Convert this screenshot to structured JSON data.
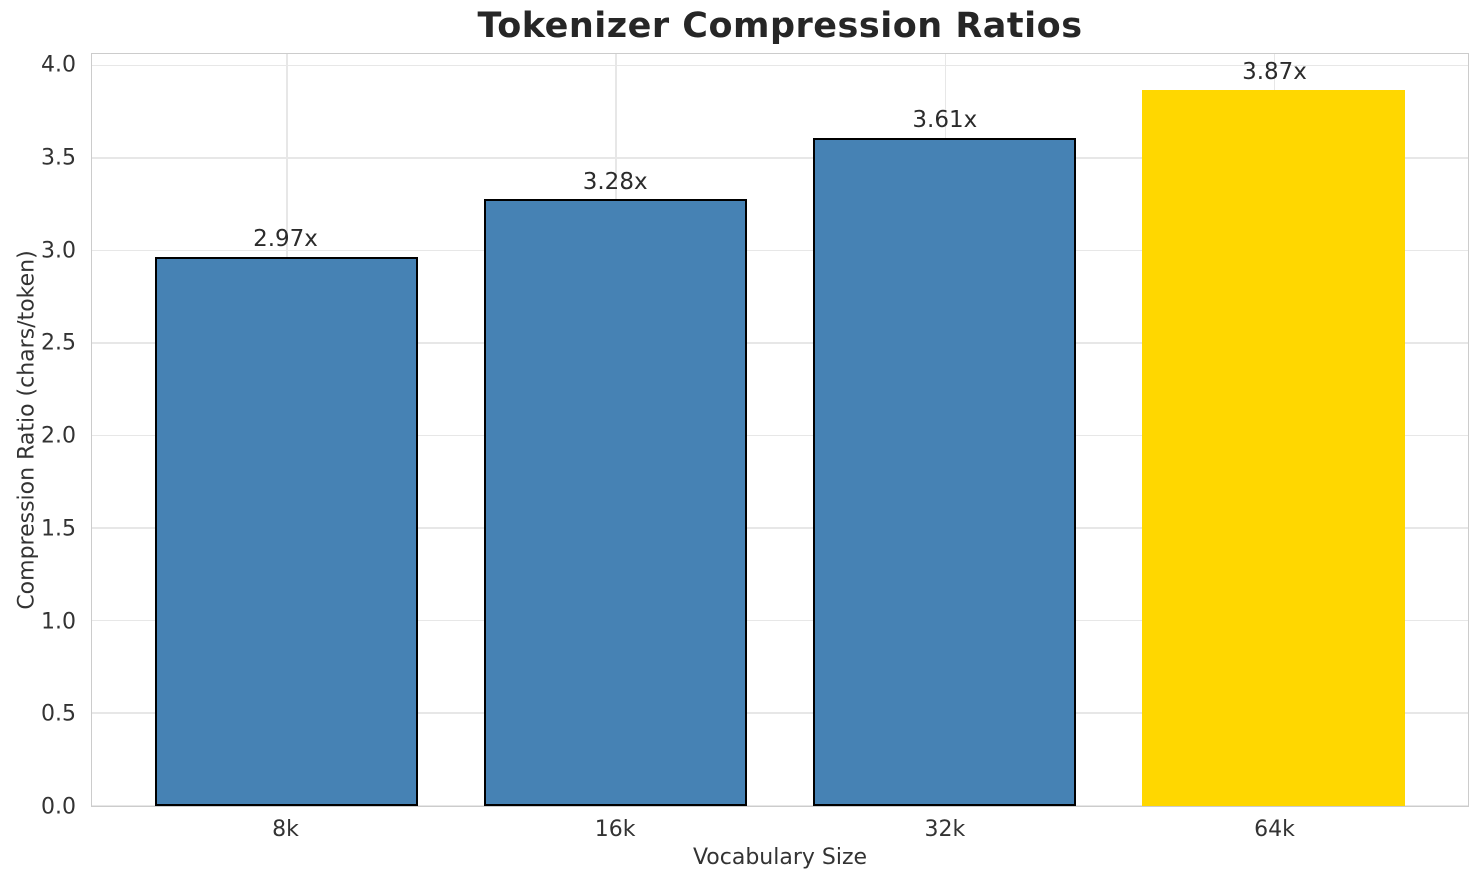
{
  "chart_data": {
    "type": "bar",
    "title": "Tokenizer Compression Ratios",
    "xlabel": "Vocabulary Size",
    "ylabel": "Compression Ratio (chars/token)",
    "categories": [
      "8k",
      "16k",
      "32k",
      "64k"
    ],
    "values": [
      2.97,
      3.28,
      3.61,
      3.87
    ],
    "bar_labels": [
      "2.97x",
      "3.28x",
      "3.61x",
      "3.87x"
    ],
    "bar_colors": [
      "#4682B4",
      "#4682B4",
      "#4682B4",
      "#FFD700"
    ],
    "bar_edge_colors": [
      "#000000",
      "#000000",
      "#000000",
      "none"
    ],
    "ytick_values": [
      0.0,
      0.5,
      1.0,
      1.5,
      2.0,
      2.5,
      3.0,
      3.5,
      4.0
    ],
    "ytick_labels": [
      "0.0",
      "0.5",
      "1.0",
      "1.5",
      "2.0",
      "2.5",
      "3.0",
      "3.5",
      "4.0"
    ],
    "ylim": [
      0,
      4.065
    ],
    "xlim": [
      -0.59,
      3.59
    ],
    "bar_width": 0.8,
    "grid": "both",
    "legend_position": "none",
    "grid_color": "#e7e7e7",
    "spine_color": "#cccccc",
    "text_color": "#333333",
    "title_color": "#262626"
  }
}
